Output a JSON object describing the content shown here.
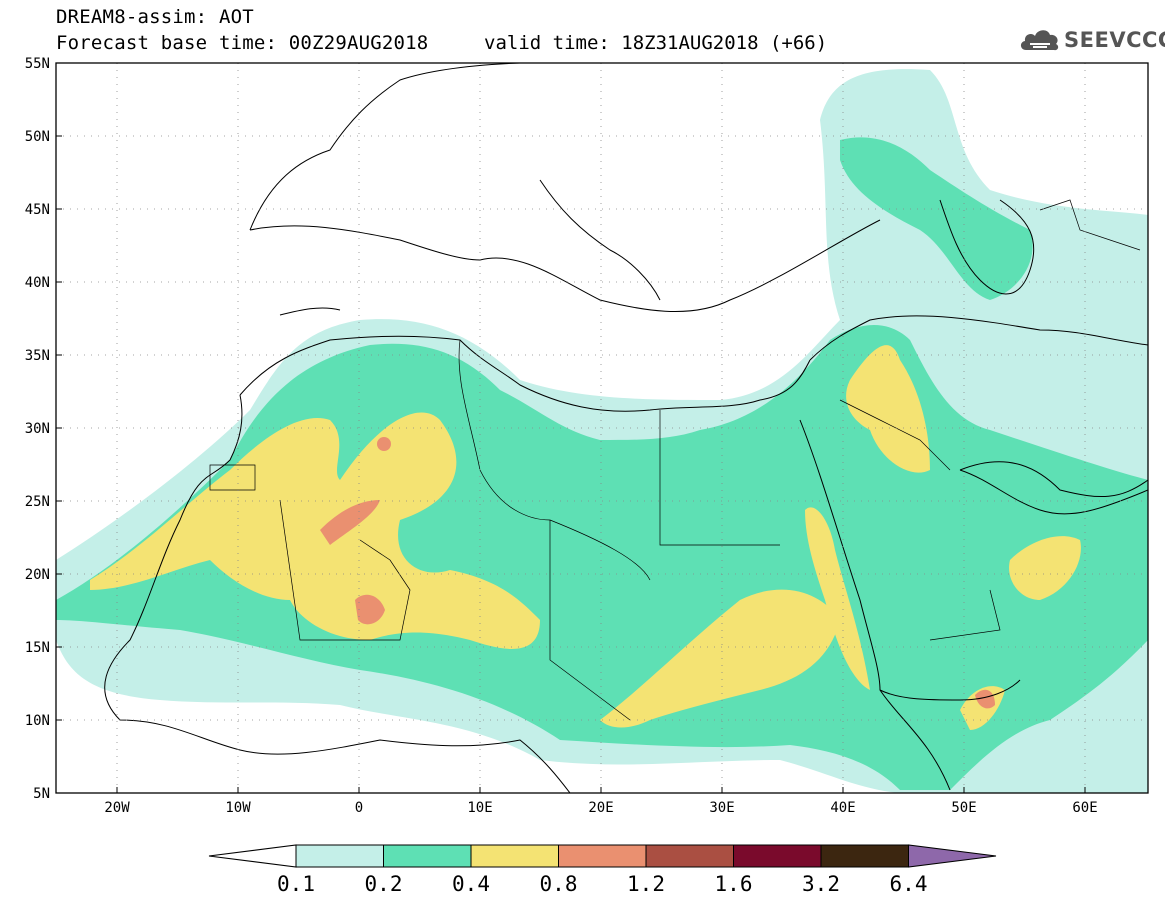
{
  "header": {
    "title": "DREAM8-assim: AOT",
    "base_time": "Forecast base time: 00Z29AUG2018",
    "valid_time": "valid time: 18Z31AUG2018 (+66)"
  },
  "logo": {
    "text": "SEEVCCC",
    "icon": "cloud-icon"
  },
  "map": {
    "lon_range": [
      -25,
      65
    ],
    "lat_range": [
      5,
      55
    ],
    "lat_ticks": [
      "55N",
      "50N",
      "45N",
      "40N",
      "35N",
      "30N",
      "25N",
      "20N",
      "15N",
      "10N",
      "5N"
    ],
    "lon_ticks": [
      "20W",
      "10W",
      "0",
      "10E",
      "20E",
      "30E",
      "40E",
      "50E",
      "60E"
    ]
  },
  "colorbar": {
    "labels": [
      "0.1",
      "0.2",
      "0.4",
      "0.8",
      "1.2",
      "1.6",
      "3.2",
      "6.4"
    ],
    "colors": [
      "#c4efe8",
      "#5ee0b4",
      "#f4e373",
      "#ea9070",
      "#aa4f42",
      "#7a0a2c",
      "#3c2610"
    ],
    "over_color": "#8e68aa",
    "under_color": "#ffffff"
  }
}
